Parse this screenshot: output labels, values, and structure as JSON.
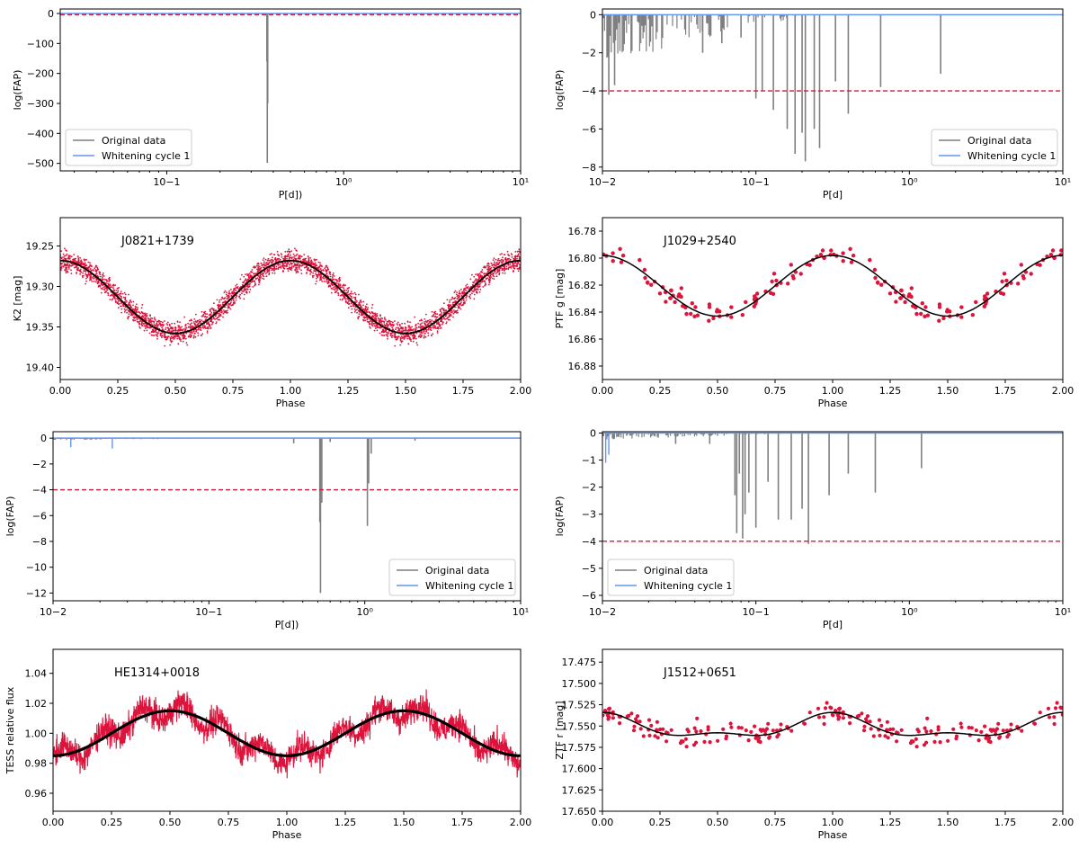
{
  "colors": {
    "original": "#7f7f7f",
    "whitening": "#6495ed",
    "threshold": "#dc143c",
    "points": "#dc143c",
    "model": "#000000"
  },
  "legend": {
    "original_label": "Original data",
    "whitening_label": "Whitening cycle 1"
  },
  "chart_data": [
    {
      "id": "p1",
      "type": "line",
      "xscale": "log",
      "xlim": [
        0.025,
        10
      ],
      "ylim": [
        -525,
        15
      ],
      "xlabel": "P[d])",
      "ylabel": "log(FAP)",
      "xticks": [
        0.1,
        1,
        10
      ],
      "xtick_labels": [
        "10−1",
        "10⁰",
        "10¹"
      ],
      "yticks": [
        0,
        -100,
        -200,
        -300,
        -400,
        -500
      ],
      "ytick_labels": [
        "0",
        "−100",
        "−200",
        "−300",
        "−400",
        "−500"
      ],
      "threshold": -4,
      "spikes": [
        [
          0.37,
          -498
        ],
        [
          0.372,
          -300
        ],
        [
          0.368,
          -160
        ]
      ],
      "noise": 2,
      "legend_pos": "lower-left"
    },
    {
      "id": "p2",
      "type": "line",
      "xscale": "log",
      "xlim": [
        0.01,
        10
      ],
      "ylim": [
        -8.2,
        0.3
      ],
      "xlabel": "P[d]",
      "ylabel": "log(FAP)",
      "xticks": [
        0.01,
        0.1,
        1,
        10
      ],
      "xtick_labels": [
        "10−2",
        "10−1",
        "10⁰",
        "10¹"
      ],
      "yticks": [
        0,
        -2,
        -4,
        -6,
        -8
      ],
      "ytick_labels": [
        "0",
        "−2",
        "−4",
        "−6",
        "−8"
      ],
      "threshold": -4,
      "spikes": [
        [
          0.011,
          -4.2
        ],
        [
          0.012,
          -3.7
        ],
        [
          0.1,
          -4.4
        ],
        [
          0.11,
          -4.0
        ],
        [
          0.13,
          -5.0
        ],
        [
          0.16,
          -6.0
        ],
        [
          0.18,
          -7.3
        ],
        [
          0.2,
          -6.2
        ],
        [
          0.21,
          -7.7
        ],
        [
          0.24,
          -6.0
        ],
        [
          0.26,
          -7.0
        ],
        [
          0.33,
          -3.5
        ],
        [
          0.4,
          -5.2
        ],
        [
          0.65,
          -3.8
        ],
        [
          1.6,
          -3.1
        ],
        [
          0.06,
          -1.5
        ],
        [
          0.08,
          -1.2
        ],
        [
          0.045,
          -2.0
        ]
      ],
      "noise": 2.6,
      "legend_pos": "lower-right"
    },
    {
      "id": "p3",
      "type": "scatter",
      "xlim": [
        0,
        2
      ],
      "ylim": [
        19.415,
        19.215
      ],
      "inverted_y": true,
      "xlabel": "Phase",
      "ylabel": "K2 [mag]",
      "xticks": [
        0,
        0.25,
        0.5,
        0.75,
        1,
        1.25,
        1.5,
        1.75,
        2
      ],
      "xtick_labels": [
        "0.00",
        "0.25",
        "0.50",
        "0.75",
        "1.00",
        "1.25",
        "1.50",
        "1.75",
        "2.00"
      ],
      "yticks": [
        19.25,
        19.3,
        19.35,
        19.4
      ],
      "ytick_labels": [
        "19.25",
        "19.30",
        "19.35",
        "19.40"
      ],
      "model": {
        "mean": 19.313,
        "amp": 0.045,
        "phase0": 0.0,
        "harm2": 0,
        "width": 1.8
      },
      "n_points": 1800,
      "scatter": 0.022,
      "point_size": 0.9,
      "object_label": "J0821+1739"
    },
    {
      "id": "p4",
      "type": "scatter",
      "xlim": [
        0,
        2
      ],
      "ylim": [
        16.89,
        16.77
      ],
      "inverted_y": true,
      "xlabel": "Phase",
      "ylabel": "PTF g [mag]",
      "xticks": [
        0,
        0.25,
        0.5,
        0.75,
        1,
        1.25,
        1.5,
        1.75,
        2
      ],
      "xtick_labels": [
        "0.00",
        "0.25",
        "0.50",
        "0.75",
        "1.00",
        "1.25",
        "1.50",
        "1.75",
        "2.00"
      ],
      "yticks": [
        16.78,
        16.8,
        16.82,
        16.84,
        16.86,
        16.88
      ],
      "ytick_labels": [
        "16.78",
        "16.80",
        "16.82",
        "16.84",
        "16.86",
        "16.88"
      ],
      "model": {
        "mean": 16.8205,
        "amp": 0.0225,
        "phase0": 0.0,
        "harm2": 0,
        "width": 1.5
      },
      "n_points": 80,
      "scatter": 0.015,
      "point_size": 2.2,
      "object_label": "J1029+2540"
    },
    {
      "id": "p5",
      "type": "line",
      "xscale": "log",
      "xlim": [
        0.01,
        10
      ],
      "ylim": [
        -12.6,
        0.5
      ],
      "xlabel": "P[d])",
      "ylabel": "log(FAP)",
      "xticks": [
        0.01,
        0.1,
        1,
        10
      ],
      "xtick_labels": [
        "10−2",
        "10−1",
        "10⁰",
        "10¹"
      ],
      "yticks": [
        0,
        -2,
        -4,
        -6,
        -8,
        -10,
        -12
      ],
      "ytick_labels": [
        "0",
        "−2",
        "−4",
        "−6",
        "−8",
        "−10",
        "−12"
      ],
      "threshold": -4,
      "spikes": [
        [
          0.52,
          -12.0
        ],
        [
          0.515,
          -6.5
        ],
        [
          0.53,
          -5.0
        ],
        [
          1.04,
          -6.8
        ],
        [
          1.06,
          -3.5
        ],
        [
          1.1,
          -1.2
        ],
        [
          0.35,
          -0.4
        ],
        [
          0.6,
          -0.3
        ],
        [
          2.1,
          -0.2
        ]
      ],
      "whiten_spikes": [
        [
          0.013,
          -0.7
        ],
        [
          0.024,
          -0.8
        ]
      ],
      "noise": 0.15,
      "legend_pos": "lower-right"
    },
    {
      "id": "p6",
      "type": "line",
      "xscale": "log",
      "xlim": [
        0.01,
        10
      ],
      "ylim": [
        -6.2,
        0.05
      ],
      "xlabel": "P[d]",
      "ylabel": "log(FAP)",
      "xticks": [
        0.01,
        0.1,
        1,
        10
      ],
      "xtick_labels": [
        "10−2",
        "10−1",
        "10⁰",
        "10¹"
      ],
      "yticks": [
        0,
        -1,
        -2,
        -3,
        -4,
        -5,
        -6
      ],
      "ytick_labels": [
        "0",
        "−1",
        "−2",
        "−3",
        "−4",
        "−5",
        "−6"
      ],
      "threshold": -4,
      "spikes": [
        [
          0.073,
          -2.3
        ],
        [
          0.075,
          -3.7
        ],
        [
          0.078,
          -1.5
        ],
        [
          0.082,
          -3.9
        ],
        [
          0.085,
          -3.0
        ],
        [
          0.09,
          -2.2
        ],
        [
          0.1,
          -3.5
        ],
        [
          0.12,
          -1.8
        ],
        [
          0.14,
          -3.2
        ],
        [
          0.17,
          -3.2
        ],
        [
          0.2,
          -2.8
        ],
        [
          0.22,
          -4.1
        ],
        [
          0.3,
          -2.3
        ],
        [
          0.4,
          -1.5
        ],
        [
          0.6,
          -2.2
        ],
        [
          1.2,
          -1.3
        ],
        [
          0.05,
          -0.4
        ],
        [
          0.03,
          -0.4
        ]
      ],
      "whiten_spikes": [
        [
          0.0105,
          -1.1
        ],
        [
          0.011,
          -0.8
        ]
      ],
      "noise": 0.25,
      "legend_pos": "lower-left"
    },
    {
      "id": "p7",
      "type": "line",
      "xlim": [
        0,
        2
      ],
      "ylim": [
        0.948,
        1.056
      ],
      "xlabel": "Phase",
      "ylabel": "TESS relative flux",
      "xticks": [
        0,
        0.25,
        0.5,
        0.75,
        1,
        1.25,
        1.5,
        1.75,
        2
      ],
      "xtick_labels": [
        "0.00",
        "0.25",
        "0.50",
        "0.75",
        "1.00",
        "1.25",
        "1.50",
        "1.75",
        "2.00"
      ],
      "yticks": [
        0.96,
        0.98,
        1.0,
        1.02,
        1.04
      ],
      "ytick_labels": [
        "0.96",
        "0.98",
        "1.00",
        "1.02",
        "1.04"
      ],
      "model": {
        "mean": 1.0,
        "amp": 0.015,
        "phase0": 0.5,
        "harm2": 0,
        "width": 3.2
      },
      "n_points": 900,
      "scatter": 0.016,
      "object_label": "HE1314+0018"
    },
    {
      "id": "p8",
      "type": "scatter",
      "xlim": [
        0,
        2
      ],
      "ylim": [
        17.65,
        17.46
      ],
      "inverted_y": true,
      "xlabel": "Phase",
      "ylabel": "ZTF r [mag]",
      "xticks": [
        0,
        0.25,
        0.5,
        0.75,
        1,
        1.25,
        1.5,
        1.75,
        2
      ],
      "xtick_labels": [
        "0.00",
        "0.25",
        "0.50",
        "0.75",
        "1.00",
        "1.25",
        "1.50",
        "1.75",
        "2.00"
      ],
      "yticks": [
        17.475,
        17.5,
        17.525,
        17.55,
        17.575,
        17.6,
        17.625,
        17.65
      ],
      "ytick_labels": [
        "17.475",
        "17.500",
        "17.525",
        "17.550",
        "17.575",
        "17.600",
        "17.625",
        "17.650"
      ],
      "model": {
        "mean": 17.552,
        "amp": 0.012,
        "phase0": 0.0,
        "harm2": 0.012,
        "width": 1.5
      },
      "n_points": 110,
      "scatter": 0.02,
      "point_size": 2.1,
      "object_label": "J1512+0651"
    }
  ]
}
